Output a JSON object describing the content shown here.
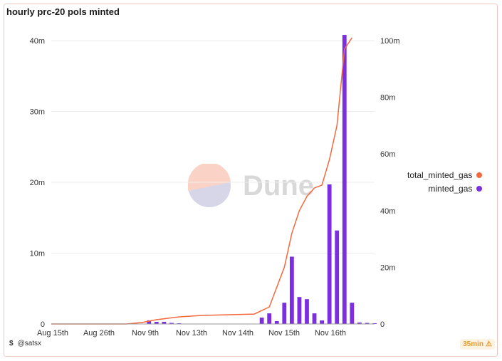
{
  "chart_data": {
    "type": "bar",
    "title": "hourly prc-20 pols minted",
    "x_tick_labels": [
      "Aug 15th",
      "Aug 26th",
      "Nov 9th",
      "Nov 13th",
      "Nov 14th",
      "Nov 15th",
      "Nov 16th"
    ],
    "y_left": {
      "ticks": [
        "0",
        "10m",
        "20m",
        "30m",
        "40m"
      ],
      "ylim": [
        0,
        40000000
      ]
    },
    "y_right": {
      "ticks": [
        "0",
        "20m",
        "40m",
        "60m",
        "80m",
        "100m"
      ],
      "ylim": [
        0,
        100000000
      ]
    },
    "series": [
      {
        "name": "minted_gas",
        "type": "bar",
        "axis": "left",
        "color": "#7b2fe0",
        "x": [
          13,
          14,
          15,
          16,
          17,
          28,
          29,
          30,
          31,
          32,
          33,
          34,
          35,
          36,
          37,
          38,
          39,
          40,
          41,
          42,
          43
        ],
        "values": [
          500000,
          300000,
          300000,
          150000,
          100000,
          900000,
          1500000,
          400000,
          3000000,
          9500000,
          3800000,
          3500000,
          1500000,
          500000,
          19700000,
          13200000,
          40800000,
          3000000,
          200000,
          150000,
          100000
        ]
      },
      {
        "name": "total_minted_gas",
        "type": "line",
        "axis": "right",
        "color": "#f4683c",
        "x": [
          0,
          10,
          12,
          14,
          17,
          20,
          27,
          29,
          31,
          32,
          33,
          34,
          35,
          36,
          37,
          38,
          39,
          40
        ],
        "values": [
          0,
          0,
          500000,
          1500000,
          2500000,
          3000000,
          3500000,
          6000000,
          20000000,
          32000000,
          40000000,
          45000000,
          48000000,
          49000000,
          58000000,
          70000000,
          97000000,
          101000000
        ]
      }
    ],
    "x_range": [
      0,
      43
    ],
    "legend_position": "right",
    "grid": true
  },
  "watermark": "Dune",
  "footer": {
    "author": "@satsx",
    "refresh": "35min"
  }
}
